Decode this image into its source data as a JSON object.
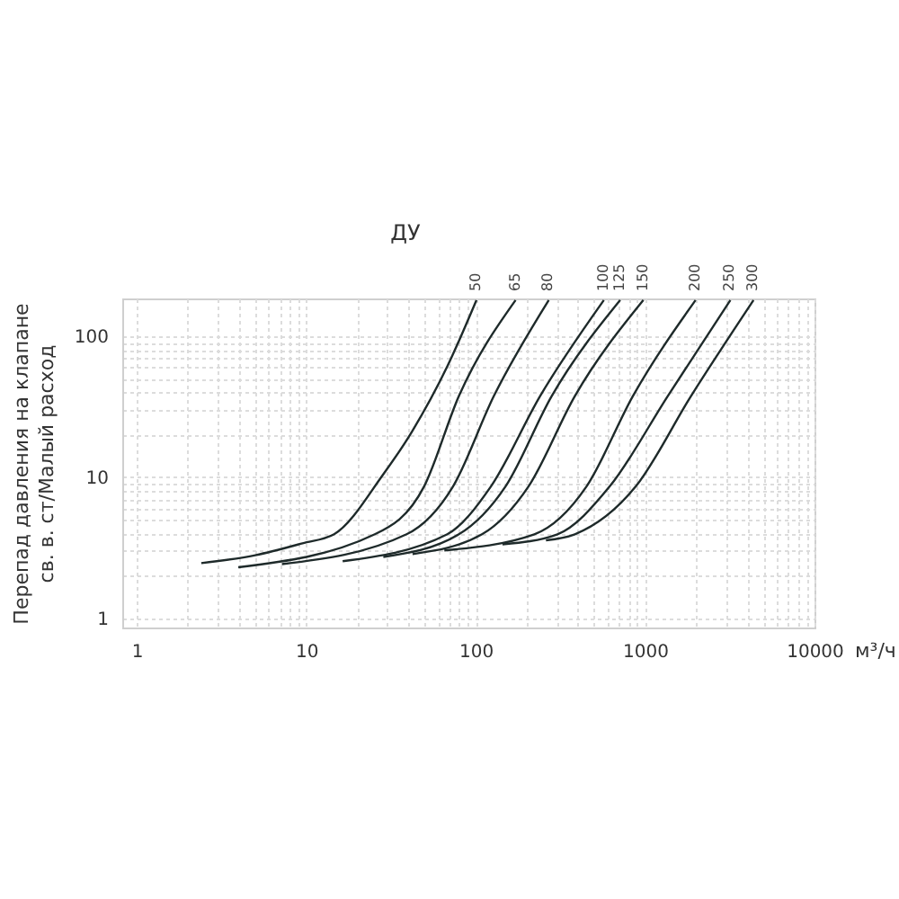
{
  "chart_data": {
    "type": "line",
    "legend_title": "ДУ",
    "xlabel": "м³/ч",
    "ylabel": "Перепад давления на клапане\nсв. в. ст/Малый расход",
    "log": "xy",
    "grid": true,
    "legend": false,
    "line_style": "solid",
    "marker": "none",
    "xlim": [
      0.82,
      10000
    ],
    "ylim": [
      0.86,
      185
    ],
    "xticks": [
      1,
      {
        "value": 2,
        "label": null
      },
      {
        "value": 3,
        "label": null
      },
      {
        "value": 4,
        "label": null
      },
      {
        "value": 5,
        "label": null
      },
      {
        "value": 6,
        "label": null
      },
      {
        "value": 7,
        "label": null
      },
      {
        "value": 8,
        "label": null
      },
      {
        "value": 9,
        "label": null
      },
      10,
      {
        "value": 20,
        "label": null
      },
      {
        "value": 30,
        "label": null
      },
      {
        "value": 40,
        "label": null
      },
      {
        "value": 50,
        "label": null
      },
      {
        "value": 60,
        "label": null
      },
      {
        "value": 70,
        "label": null
      },
      {
        "value": 80,
        "label": null
      },
      {
        "value": 90,
        "label": null
      },
      100,
      {
        "value": 200,
        "label": null
      },
      {
        "value": 300,
        "label": null
      },
      {
        "value": 400,
        "label": null
      },
      {
        "value": 500,
        "label": null
      },
      {
        "value": 600,
        "label": null
      },
      {
        "value": 700,
        "label": null
      },
      {
        "value": 800,
        "label": null
      },
      {
        "value": 900,
        "label": null
      },
      1000,
      {
        "value": 2000,
        "label": null
      },
      {
        "value": 3000,
        "label": null
      },
      {
        "value": 4000,
        "label": null
      },
      {
        "value": 5000,
        "label": null
      },
      {
        "value": 6000,
        "label": null
      },
      {
        "value": 7000,
        "label": null
      },
      {
        "value": 8000,
        "label": null
      },
      {
        "value": 9000,
        "label": null
      },
      10000
    ],
    "yticks": [
      1,
      {
        "value": 2,
        "label": null
      },
      {
        "value": 3,
        "label": null
      },
      {
        "value": 4,
        "label": null
      },
      {
        "value": 5,
        "label": null
      },
      {
        "value": 6,
        "label": null
      },
      {
        "value": 7,
        "label": null
      },
      {
        "value": 8,
        "label": null
      },
      {
        "value": 9,
        "label": null
      },
      10,
      {
        "value": 20,
        "label": null
      },
      {
        "value": 30,
        "label": null
      },
      {
        "value": 40,
        "label": null
      },
      {
        "value": 50,
        "label": null
      },
      {
        "value": 60,
        "label": null
      },
      {
        "value": 70,
        "label": null
      },
      {
        "value": 80,
        "label": null
      },
      {
        "value": 90,
        "label": null
      },
      100
    ],
    "series": [
      {
        "name": "50",
        "color": "#1e2a2a",
        "x": [
          2.4,
          5,
          9.5,
          14.6,
          28.5,
          42,
          68,
          101
        ],
        "values": [
          2.46,
          2.8,
          3.4,
          3.94,
          10.5,
          21,
          61,
          180
        ]
      },
      {
        "name": "65",
        "color": "#1e2a2a",
        "x": [
          3.97,
          25.4,
          49.6,
          79.6,
          172
        ],
        "values": [
          2.3,
          3.94,
          8.6,
          37.6,
          180
        ]
      },
      {
        "name": "80",
        "color": "#1e2a2a",
        "x": [
          7.18,
          39.1,
          73.5,
          128,
          270
        ],
        "values": [
          2.42,
          3.94,
          8.6,
          37.6,
          180
        ]
      },
      {
        "name": "100",
        "color": "#1e2a2a",
        "x": [
          16.4,
          68,
          123,
          240,
          571
        ],
        "values": [
          2.54,
          3.94,
          8.6,
          37.6,
          180
        ]
      },
      {
        "name": "125",
        "color": "#1e2a2a",
        "x": [
          28.5,
          79.6,
          150,
          281,
          713
        ],
        "values": [
          2.72,
          3.94,
          8.6,
          37.6,
          180
        ]
      },
      {
        "name": "150",
        "color": "#1e2a2a",
        "x": [
          42.4,
          109,
          205,
          385,
          977
        ],
        "values": [
          2.85,
          3.94,
          8.6,
          37.6,
          180
        ]
      },
      {
        "name": "200",
        "color": "#1e2a2a",
        "x": [
          65.3,
          222,
          451,
          847,
          1986
        ],
        "values": [
          3.03,
          3.94,
          8.6,
          37.6,
          180
        ]
      },
      {
        "name": "250",
        "color": "#1e2a2a",
        "x": [
          144,
          304,
          618,
          1361,
          3187
        ],
        "values": [
          3.34,
          3.94,
          8.6,
          37.6,
          180
        ]
      },
      {
        "name": "300",
        "color": "#1e2a2a",
        "x": [
          260,
          385,
          881,
          1866,
          4365
        ],
        "values": [
          3.57,
          3.94,
          8.6,
          37.6,
          180
        ]
      }
    ]
  }
}
